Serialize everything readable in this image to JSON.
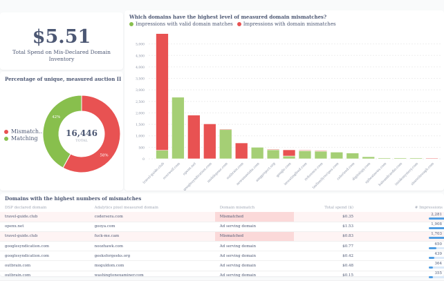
{
  "kpi": {
    "value": "$5.51",
    "label": "Total Spend on Mis-Declared Domain Inventory"
  },
  "donut": {
    "title": "Percentage of unique, measured auction IDs with domain ...",
    "total": "16,446",
    "total_label": "TOTAL",
    "slices": [
      {
        "name": "Mismatch...",
        "percent": 58,
        "label": "58%",
        "color": "#e85252"
      },
      {
        "name": "Matching",
        "percent": 42,
        "label": "42%",
        "color": "#88bf4d"
      }
    ]
  },
  "chart_data": {
    "type": "bar",
    "stacked": true,
    "title": "Which domains have the highest level of measured domain mismatches?",
    "ylim": [
      0,
      5500
    ],
    "yticks": [
      "0",
      "500",
      "1,000",
      "1,500",
      "2,000",
      "2,500",
      "3,000",
      "3,500",
      "4,000",
      "4,500",
      "5,000"
    ],
    "grid": true,
    "legend_placement": "top-left",
    "categories": [
      "travel-guide.club",
      "overwolf.com",
      "openx.net",
      "googlesyndication.com",
      "mobilepose.com",
      "outbrain.com",
      "newsmaxtabs.com",
      "amgproject.org",
      "google.com",
      "investingfeed.com",
      "reference.com",
      "tasfamilyrecipes.com",
      "colorized.com",
      "digitalspy.com",
      "upbeatnews.com",
      "kaleandcardio.com",
      "insidemystery.com",
      "sharethrough.com"
    ],
    "series": [
      {
        "name": "Impressions with valid domain matches",
        "color": "#a5cf75",
        "values": [
          370,
          2680,
          0,
          0,
          1270,
          0,
          500,
          390,
          120,
          350,
          330,
          290,
          250,
          90,
          40,
          40,
          40,
          0
        ]
      },
      {
        "name": "Impressions with domain mismatches",
        "color": "#e85252",
        "values": [
          5080,
          0,
          1900,
          1520,
          30,
          690,
          0,
          30,
          270,
          30,
          30,
          0,
          0,
          0,
          0,
          0,
          0,
          30
        ]
      }
    ]
  },
  "table": {
    "title": "Domains with the highest numbers of mismatches",
    "columns": [
      "DSP declared domain",
      "Adalytics pixel measured domain",
      "Domain mismatch",
      "Total spend ($)",
      "# Impressions"
    ],
    "rows": [
      {
        "dsp": "travel-guide.club",
        "measured": "codersera.com",
        "mismatch": "Mismatched",
        "spend": "$0.35",
        "imps": "2,281",
        "frac": 1.0
      },
      {
        "dsp": "openx.net",
        "measured": "gooya.com",
        "mismatch": "Ad serving domain",
        "spend": "$1.53",
        "imps": "1,908",
        "frac": 0.84
      },
      {
        "dsp": "travel-guide.club",
        "measured": "fuck-me.cam",
        "mismatch": "Mismatched",
        "spend": "$0.83",
        "imps": "1,703",
        "frac": 0.75
      },
      {
        "dsp": "googlesyndication.com",
        "measured": "noozhawk.com",
        "mismatch": "Ad serving domain",
        "spend": "$0.77",
        "imps": "650",
        "frac": 0.28
      },
      {
        "dsp": "googlesyndication.com",
        "measured": "geeksforgeeks.org",
        "mismatch": "Ad serving domain",
        "spend": "$0.42",
        "imps": "439",
        "frac": 0.19
      },
      {
        "dsp": "outbrain.com",
        "measured": "moguldom.com",
        "mismatch": "Ad serving domain",
        "spend": "$0.48",
        "imps": "364",
        "frac": 0.16
      },
      {
        "dsp": "outbrain.com",
        "measured": "washingtonexaminer.com",
        "mismatch": "Ad serving domain",
        "spend": "$0.15",
        "imps": "355",
        "frac": 0.15
      }
    ]
  }
}
